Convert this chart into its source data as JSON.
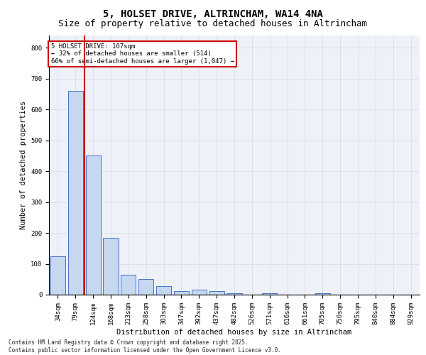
{
  "title1": "5, HOLSET DRIVE, ALTRINCHAM, WA14 4NA",
  "title2": "Size of property relative to detached houses in Altrincham",
  "xlabel": "Distribution of detached houses by size in Altrincham",
  "ylabel": "Number of detached properties",
  "categories": [
    "34sqm",
    "79sqm",
    "124sqm",
    "168sqm",
    "213sqm",
    "258sqm",
    "303sqm",
    "347sqm",
    "392sqm",
    "437sqm",
    "482sqm",
    "526sqm",
    "571sqm",
    "616sqm",
    "661sqm",
    "705sqm",
    "750sqm",
    "795sqm",
    "840sqm",
    "884sqm",
    "929sqm"
  ],
  "values": [
    125,
    660,
    450,
    185,
    65,
    50,
    28,
    12,
    15,
    12,
    5,
    0,
    5,
    0,
    0,
    5,
    0,
    0,
    0,
    0,
    0
  ],
  "bar_color": "#c5d8f0",
  "bar_edge_color": "#4472c4",
  "vline_x": 1.5,
  "vline_color": "#cc0000",
  "annotation_text": "5 HOLSET DRIVE: 107sqm\n← 32% of detached houses are smaller (514)\n66% of semi-detached houses are larger (1,047) →",
  "annotation_box_color": "#ffffff",
  "annotation_box_edge": "#cc0000",
  "ylim": [
    0,
    840
  ],
  "yticks": [
    0,
    100,
    200,
    300,
    400,
    500,
    600,
    700,
    800
  ],
  "grid_color": "#d0d8e8",
  "background_color": "#eef2f8",
  "footer": "Contains HM Land Registry data © Crown copyright and database right 2025.\nContains public sector information licensed under the Open Government Licence v3.0.",
  "title1_fontsize": 10,
  "title2_fontsize": 9,
  "axis_label_fontsize": 7.5,
  "tick_fontsize": 6.5,
  "footer_fontsize": 5.5,
  "annotation_fontsize": 6.5
}
